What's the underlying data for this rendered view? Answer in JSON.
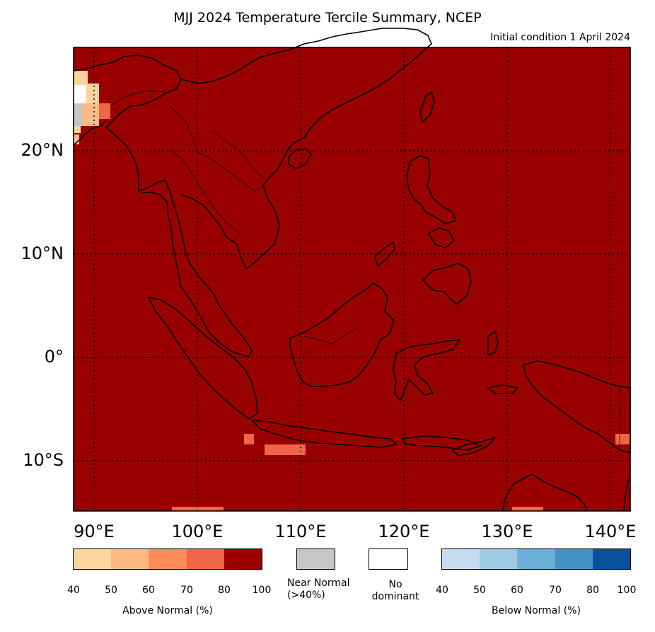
{
  "title": "MJJ 2024 Temperature Tercile Summary, NCEP",
  "subtitle": "Initial condition 1 April 2024",
  "map": {
    "lat_labels": [
      "20°N",
      "10°N",
      "0°",
      "10°S"
    ],
    "lon_labels": [
      "90°E",
      "100°E",
      "110°E",
      "120°E",
      "130°E",
      "140°E"
    ],
    "extent": {
      "lon": [
        88,
        142
      ],
      "lat": [
        -15,
        30
      ]
    },
    "dominant_category": "Above Normal",
    "dominant_color": "#990000",
    "gridlines": "dotted"
  },
  "legend": {
    "above_normal": {
      "label": "Above Normal (%)",
      "ticks": [
        "40",
        "50",
        "60",
        "70",
        "80",
        "100"
      ],
      "colors": [
        "#fdd49e",
        "#fdbb84",
        "#fc8d59",
        "#ef6548",
        "#990000"
      ]
    },
    "near_normal": {
      "label_line1": "Near Normal",
      "label_line2": "(>40%)",
      "color": "#c6c6c6"
    },
    "no_dominant": {
      "label_line1": "No",
      "label_line2": "dominant",
      "color": "#ffffff"
    },
    "below_normal": {
      "label": "Below Normal (%)",
      "ticks": [
        "40",
        "50",
        "60",
        "70",
        "80",
        "100"
      ],
      "colors": [
        "#c6dbef",
        "#9ecae1",
        "#6baed6",
        "#4292c6",
        "#08519c"
      ]
    }
  }
}
